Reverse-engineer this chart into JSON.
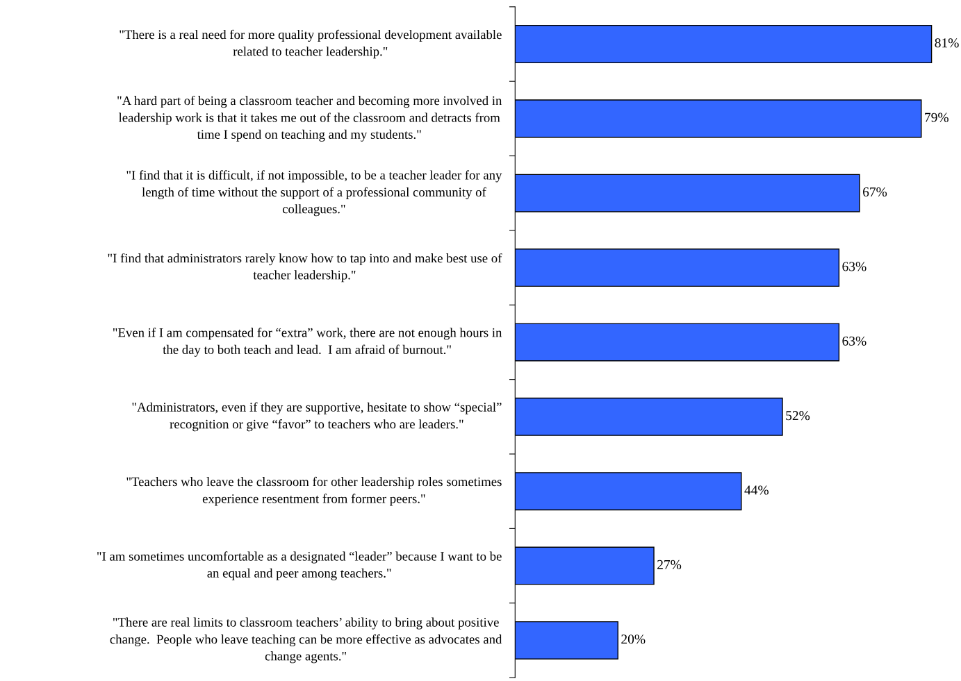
{
  "chart_data": {
    "type": "bar",
    "orientation": "horizontal",
    "categories": [
      "\"There is a real need for more quality professional development available\nrelated to teacher leadership.\"",
      "\"A hard part of being a classroom teacher and becoming more involved in\nleadership work is that it takes me out of the classroom and detracts from\ntime I spend on teaching and my students.\"",
      "\"I find that it is difficult, if not impossible, to be a teacher leader for any\nlength of time without the support of a professional community of\ncolleagues.\"",
      "\"I find that administrators rarely know how to tap into and make best use of\nteacher leadership.\"",
      "\"Even if I am compensated for “extra” work, there are not enough hours in\nthe day to both teach and lead.  I am afraid of burnout.\"",
      "\"Administrators, even if they are supportive, hesitate to show “special”\nrecognition or give “favor” to teachers who are leaders.\"",
      "\"Teachers who leave the classroom for other leadership roles sometimes\nexperience resentment from former peers.\"",
      "\"I am sometimes uncomfortable as a designated “leader” because I want to be\nan equal and peer among teachers.\"",
      "\"There are real limits to classroom teachers’ ability to bring about positive\nchange.  People who leave teaching can be more effective as advocates and\nchange agents.\""
    ],
    "values": [
      81,
      79,
      67,
      63,
      63,
      52,
      44,
      27,
      20
    ],
    "value_labels": [
      "81%",
      "79%",
      "67%",
      "63%",
      "63%",
      "52%",
      "44%",
      "27%",
      "20%"
    ],
    "color": "#3366ff",
    "grid": false,
    "legend": false,
    "tick_labels": "y"
  }
}
